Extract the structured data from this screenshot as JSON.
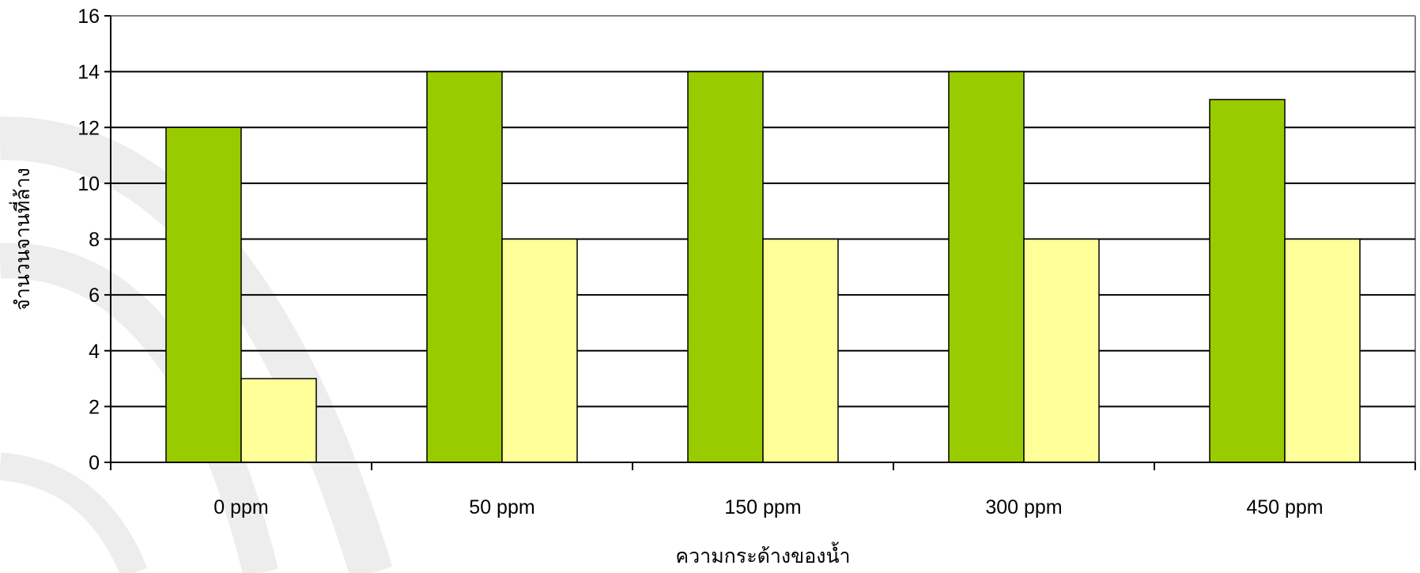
{
  "chart_data": {
    "type": "bar",
    "title": "",
    "xlabel": "ความกระด้างของน้ำ",
    "ylabel": "จำนวนจานที่ล้าง",
    "categories": [
      "0 ppm",
      "50 ppm",
      "150 ppm",
      "300 ppm",
      "450 ppm"
    ],
    "series": [
      {
        "values": [
          12,
          14,
          14,
          14,
          13
        ],
        "color": "#99cc00"
      },
      {
        "values": [
          3,
          8,
          8,
          8,
          8
        ],
        "color": "#ffff99"
      }
    ],
    "ylim": [
      0,
      16
    ],
    "yticks": [
      0,
      2,
      4,
      6,
      8,
      10,
      12,
      14,
      16
    ],
    "grid": true,
    "legend": "none"
  }
}
